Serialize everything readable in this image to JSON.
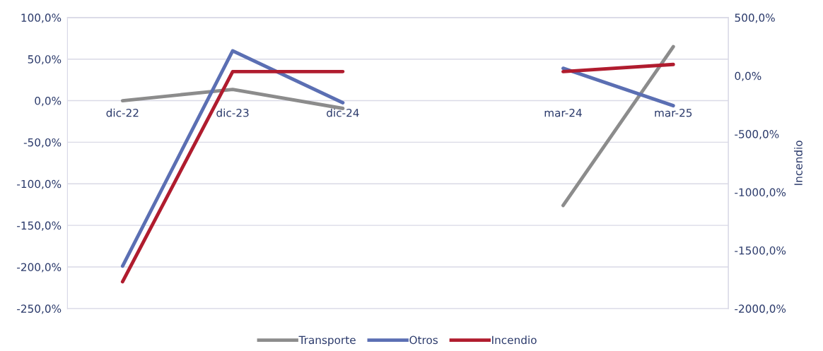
{
  "chart_data": {
    "type": "line",
    "categories": [
      "dic-22",
      "dic-23",
      "dic-24",
      null,
      "mar-24",
      "mar-25"
    ],
    "series": [
      {
        "name": "Transporte",
        "color": "#8c8c8c",
        "values": [
          0,
          13.6,
          -9.3,
          null,
          -126,
          65
        ]
      },
      {
        "name": "Otros",
        "color": "#5b6fb3",
        "values": [
          -199,
          60,
          -2.5,
          null,
          39,
          -6
        ]
      },
      {
        "name": "Incendio",
        "color": "#b01c2e",
        "axis": "y2",
        "values": [
          -1770,
          36,
          36,
          null,
          36,
          97
        ]
      }
    ],
    "ylim": [
      -250,
      100
    ],
    "yticks": [
      {
        "value": -250,
        "label": "-250,0%"
      },
      {
        "value": -200,
        "label": "-200,0%"
      },
      {
        "value": -150,
        "label": "-150,0%"
      },
      {
        "value": -100,
        "label": "-100,0%"
      },
      {
        "value": -50,
        "label": "-50,0%"
      },
      {
        "value": 0,
        "label": "0,0%"
      },
      {
        "value": 50,
        "label": "50,0%"
      },
      {
        "value": 100,
        "label": "100,0%"
      }
    ],
    "y2lim": [
      -2000,
      500
    ],
    "y2ticks": [
      {
        "value": -2000,
        "label": "-2000,0%"
      },
      {
        "value": -1500,
        "label": "-1500,0%"
      },
      {
        "value": -1000,
        "label": "-1000,0%"
      },
      {
        "value": -500,
        "label": "-500,0%"
      },
      {
        "value": 0,
        "label": "0,0%"
      },
      {
        "value": 500,
        "label": "500,0%"
      }
    ],
    "y2label": "Incendio",
    "grid": "y",
    "legend": "bottom",
    "marker": "none",
    "line_style": "solid"
  }
}
